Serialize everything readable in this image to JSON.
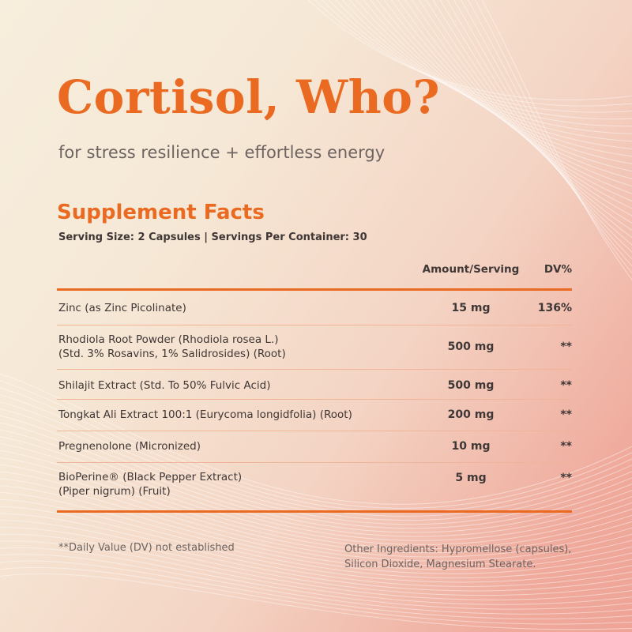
{
  "product": {
    "title": "Cortisol, Who?",
    "subtitle": "for stress resilience + effortless energy"
  },
  "facts": {
    "heading": "Supplement Facts",
    "serving_info": "Serving Size: 2 Capsules | Servings Per Container: 30",
    "columns": {
      "amount": "Amount/Serving",
      "dv": "DV%"
    },
    "rows": [
      {
        "name_lines": [
          "Zinc (as Zinc Picolinate)"
        ],
        "amount": "15 mg",
        "dv": "136%"
      },
      {
        "name_lines": [
          "Rhodiola Root Powder (Rhodiola rosea L.)",
          "(Std. 3% Rosavins, 1% Salidrosides) (Root)"
        ],
        "amount": "500 mg",
        "dv": "**"
      },
      {
        "name_lines": [
          "Shilajit Extract (Std. To 50% Fulvic Acid)"
        ],
        "amount": "500 mg",
        "dv": "**"
      },
      {
        "name_lines": [
          "Tongkat Ali Extract 100:1  (Eurycoma longidfolia) (Root)"
        ],
        "amount": "200 mg",
        "dv": "**"
      },
      {
        "name_lines": [
          "Pregnenolone (Micronized)"
        ],
        "amount": "10 mg",
        "dv": "**"
      },
      {
        "name_lines": [
          "BioPerine® (Black Pepper Extract)",
          "(Piper nigrum) (Fruit)"
        ],
        "amount": "5 mg",
        "dv": "**"
      }
    ]
  },
  "footer": {
    "dv_note": "**Daily Value (DV) not established",
    "other_ingredients_lines": [
      "Other Ingredients: Hypromellose (capsules),",
      "Silicon Dioxide, Magnesium Stearate."
    ]
  },
  "colors": {
    "accent": "#ea6a21",
    "text": "#3f3735",
    "muted": "#6d6461",
    "divider": "#f0b597"
  }
}
